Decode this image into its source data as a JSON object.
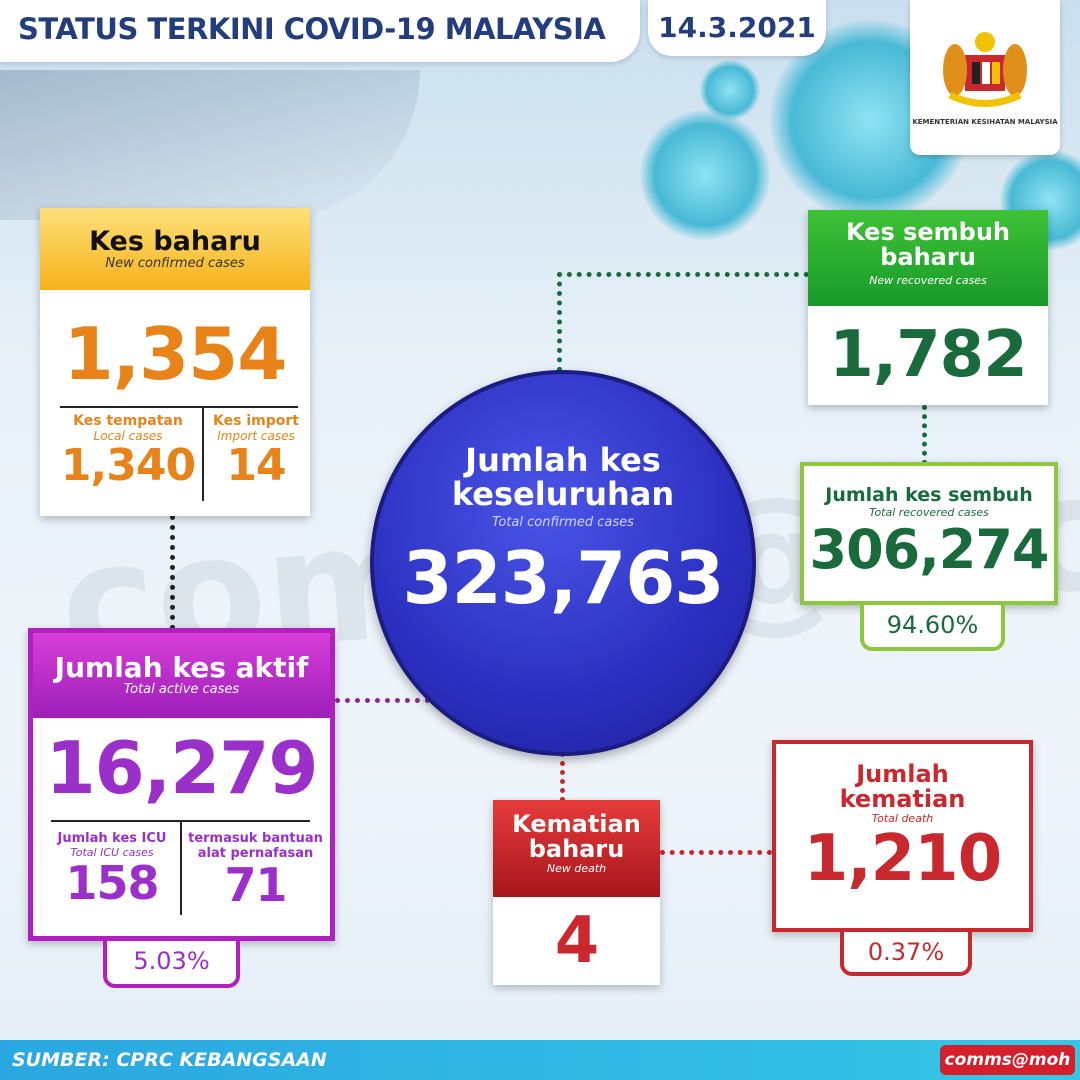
{
  "header": {
    "title": "STATUS TERKINI COVID-19 MALAYSIA",
    "date": "14.3.2021"
  },
  "logo": {
    "text": "KEMENTERIAN KESIHATAN MALAYSIA",
    "icon": "malaysia-coat-of-arms"
  },
  "new_cases": {
    "title": "Kes baharu",
    "subtitle": "New confirmed cases",
    "value": "1,354",
    "local": {
      "label": "Kes tempatan",
      "sublabel": "Local cases",
      "value": "1,340"
    },
    "import": {
      "label": "Kes import",
      "sublabel": "Import cases",
      "value": "14"
    },
    "color": "#e8831a"
  },
  "total": {
    "title_1": "Jumlah kes",
    "title_2": "keseluruhan",
    "subtitle": "Total confirmed cases",
    "value": "323,763",
    "color": "#2b2fc0"
  },
  "new_recovered": {
    "title_1": "Kes sembuh",
    "title_2": "baharu",
    "subtitle": "New recovered cases",
    "value": "1,782",
    "color": "#1a6b3c"
  },
  "total_recovered": {
    "title": "Jumlah kes sembuh",
    "subtitle": "Total recovered cases",
    "value": "306,274",
    "percent": "94.60%"
  },
  "active": {
    "title": "Jumlah kes aktif",
    "subtitle": "Total active cases",
    "value": "16,279",
    "percent": "5.03%",
    "icu": {
      "label": "Jumlah kes ICU",
      "sublabel": "Total ICU cases",
      "value": "158"
    },
    "ventilator": {
      "label_1": "termasuk bantuan",
      "label_2": "alat pernafasan",
      "value": "71"
    },
    "color": "#9b2fc9"
  },
  "new_death": {
    "title_1": "Kematian",
    "title_2": "baharu",
    "subtitle": "New death",
    "value": "4"
  },
  "total_death": {
    "title_1": "Jumlah",
    "title_2": "kematian",
    "subtitle": "Total death",
    "value": "1,210",
    "percent": "0.37%",
    "color": "#c8282e"
  },
  "footer": {
    "source": "SUMBER: CPRC KEBANGSAAN",
    "badge": "comms@moh"
  },
  "watermark": "comms@moh"
}
